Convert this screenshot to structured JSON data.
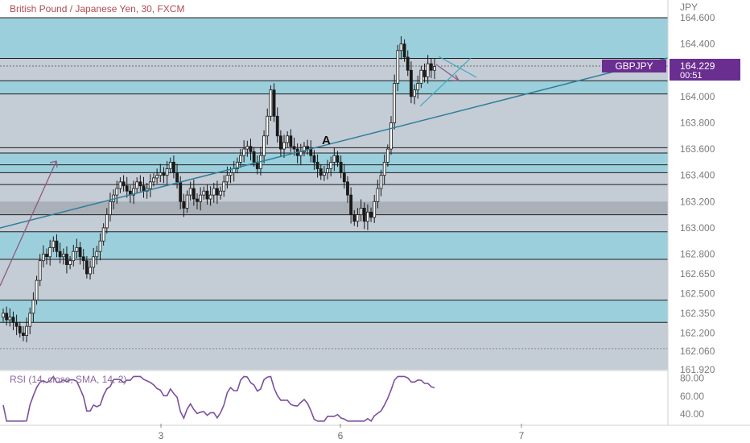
{
  "header": {
    "title": "British Pound / Japanese Yen, 30, FXCM"
  },
  "price_axis": {
    "unit": "JPY",
    "ticks": [
      "164.600",
      "164.400",
      "164.000",
      "163.800",
      "163.600",
      "163.400",
      "163.200",
      "163.000",
      "162.800",
      "162.650",
      "162.500",
      "162.350",
      "162.200",
      "162.060",
      "161.920"
    ],
    "tick_values": [
      164.6,
      164.4,
      164.0,
      163.8,
      163.6,
      163.4,
      163.2,
      163.0,
      162.8,
      162.65,
      162.5,
      162.35,
      162.2,
      162.06,
      161.92
    ]
  },
  "time_axis": {
    "ticks": [
      "3",
      "6",
      "7"
    ]
  },
  "symbol_tag": {
    "symbol": "GBPJPY",
    "price": "164.229",
    "countdown": "00:51"
  },
  "annotation": {
    "text": "A"
  },
  "rsi": {
    "label": "RSI (14, close, SMA, 14, 2)",
    "ticks": [
      "80.00",
      "60.00",
      "40.00"
    ],
    "tick_values": [
      80,
      60,
      40
    ]
  },
  "colors": {
    "zone_teal": "#9ccfdc",
    "zone_gray": "#c4ccd6",
    "zone_dark": "#aab0b8",
    "trendline": "#2e7f9a",
    "arrow": "#8e5a82",
    "candle": "#1a1a1a",
    "rsi_line": "#7b4fa0",
    "symbol_tag": "#6a2d90",
    "header_text": "#b04a52"
  },
  "chart_data": {
    "type": "candlestick",
    "symbol": "GBPJPY",
    "timeframe": "30",
    "ylim": [
      161.92,
      164.6
    ],
    "last_price": 164.229,
    "horizontal_levels": [
      164.6,
      164.29,
      164.12,
      164.02,
      163.61,
      163.57,
      163.48,
      163.42,
      163.33,
      163.1,
      162.97,
      162.76,
      162.45,
      162.28
    ],
    "zones": [
      {
        "from": 164.29,
        "to": 164.6,
        "color": "teal"
      },
      {
        "from": 164.02,
        "to": 164.12,
        "color": "teal"
      },
      {
        "from": 163.42,
        "to": 163.57,
        "color": "teal"
      },
      {
        "from": 163.1,
        "to": 163.2,
        "color": "dark"
      },
      {
        "from": 162.76,
        "to": 162.97,
        "color": "teal"
      },
      {
        "from": 162.28,
        "to": 162.45,
        "color": "teal"
      }
    ],
    "closes": [
      162.35,
      162.3,
      162.32,
      162.28,
      162.25,
      162.2,
      162.18,
      162.25,
      162.35,
      162.45,
      162.6,
      162.75,
      162.8,
      162.78,
      162.85,
      162.9,
      162.82,
      162.78,
      162.8,
      162.72,
      162.75,
      162.82,
      162.85,
      162.78,
      162.75,
      162.65,
      162.7,
      162.78,
      162.82,
      162.9,
      163.0,
      163.1,
      163.2,
      163.25,
      163.3,
      163.35,
      163.32,
      163.28,
      163.25,
      163.3,
      163.35,
      163.32,
      163.28,
      163.3,
      163.35,
      163.38,
      163.4,
      163.42,
      163.4,
      163.45,
      163.5,
      163.42,
      163.35,
      163.2,
      163.15,
      163.25,
      163.3,
      163.22,
      163.2,
      163.25,
      163.28,
      163.22,
      163.25,
      163.3,
      163.25,
      163.28,
      163.35,
      163.4,
      163.42,
      163.45,
      163.5,
      163.55,
      163.6,
      163.62,
      163.58,
      163.5,
      163.45,
      163.55,
      163.7,
      163.85,
      164.05,
      163.85,
      163.7,
      163.6,
      163.65,
      163.7,
      163.62,
      163.6,
      163.55,
      163.58,
      163.62,
      163.6,
      163.55,
      163.5,
      163.45,
      163.4,
      163.42,
      163.45,
      163.5,
      163.55,
      163.5,
      163.42,
      163.35,
      163.25,
      163.1,
      163.05,
      163.1,
      163.15,
      163.05,
      163.12,
      163.08,
      163.2,
      163.3,
      163.4,
      163.5,
      163.6,
      163.8,
      164.1,
      164.35,
      164.4,
      164.3,
      164.2,
      164.0,
      164.05,
      164.1,
      164.2,
      164.15,
      164.25,
      164.2,
      164.229
    ]
  }
}
